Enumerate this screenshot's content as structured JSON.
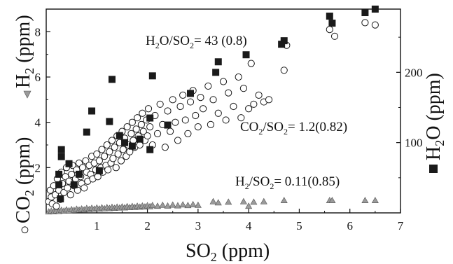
{
  "chart_data": {
    "type": "scatter",
    "x_axis": {
      "label_main": "SO",
      "label_sub": "2",
      "label_unit": " (ppm)",
      "range": [
        0,
        7
      ],
      "ticks": [
        1,
        2,
        3,
        4,
        5,
        6,
        7
      ]
    },
    "y_left_axis": {
      "range": [
        0,
        9
      ],
      "ticks": [
        2,
        4,
        6,
        8
      ],
      "label_co2_main": "CO",
      "label_co2_sub": "2",
      "label_co2_unit": " (ppm)",
      "label_h2_main": "H",
      "label_h2_sub": "2",
      "label_h2_unit": " (ppm)"
    },
    "y_right_axis": {
      "range": [
        0,
        290
      ],
      "ticks": [
        100,
        200
      ],
      "label_main": "H",
      "label_sub": "2",
      "label_unit": "O (ppm)"
    },
    "annotations": {
      "h2o_left": "H",
      "h2o_sub1": "2",
      "h2o_mid": "O/SO",
      "h2o_sub2": "2",
      "h2o_right": "= 43 (0.8)",
      "co2_left": "CO",
      "co2_sub1": "2",
      "co2_mid": "/SO",
      "co2_sub2": "2",
      "co2_right": "= 1.2(0.82)",
      "h2_left": "H",
      "h2_sub1": "2",
      "h2_mid": "/SO",
      "h2_sub2": "2",
      "h2_right": "= 0.11(0.85)"
    },
    "series": [
      {
        "name": "H2O",
        "marker": "filled-square",
        "axis": "right",
        "color": "#1a1a1a",
        "points": [
          [
            0.25,
            40
          ],
          [
            0.25,
            55
          ],
          [
            0.28,
            20
          ],
          [
            0.3,
            90
          ],
          [
            0.3,
            80
          ],
          [
            0.45,
            70
          ],
          [
            0.55,
            40
          ],
          [
            0.65,
            55
          ],
          [
            0.8,
            115
          ],
          [
            0.9,
            145
          ],
          [
            1.05,
            60
          ],
          [
            1.25,
            130
          ],
          [
            1.3,
            190
          ],
          [
            1.45,
            110
          ],
          [
            1.55,
            100
          ],
          [
            1.7,
            95
          ],
          [
            1.85,
            105
          ],
          [
            2.05,
            90
          ],
          [
            2.05,
            135
          ],
          [
            2.1,
            195
          ],
          [
            2.4,
            125
          ],
          [
            2.85,
            170
          ],
          [
            3.35,
            200
          ],
          [
            3.4,
            215
          ],
          [
            3.95,
            225
          ],
          [
            4.65,
            240
          ],
          [
            4.7,
            245
          ],
          [
            5.6,
            280
          ],
          [
            5.65,
            270
          ],
          [
            6.3,
            285
          ],
          [
            6.5,
            290
          ]
        ]
      },
      {
        "name": "CO2",
        "marker": "open-circle",
        "axis": "left",
        "color": "#1a1a1a",
        "points": [
          [
            0.05,
            0.5
          ],
          [
            0.08,
            1.0
          ],
          [
            0.1,
            0.7
          ],
          [
            0.12,
            0.4
          ],
          [
            0.15,
            1.2
          ],
          [
            0.18,
            0.8
          ],
          [
            0.2,
            0.3
          ],
          [
            0.22,
            1.5
          ],
          [
            0.25,
            1.0
          ],
          [
            0.28,
            0.6
          ],
          [
            0.3,
            1.8
          ],
          [
            0.32,
            1.3
          ],
          [
            0.35,
            0.9
          ],
          [
            0.38,
            1.6
          ],
          [
            0.4,
            2.0
          ],
          [
            0.42,
            1.1
          ],
          [
            0.45,
            1.4
          ],
          [
            0.48,
            0.8
          ],
          [
            0.5,
            1.7
          ],
          [
            0.52,
            2.1
          ],
          [
            0.55,
            1.2
          ],
          [
            0.58,
            1.5
          ],
          [
            0.6,
            1.9
          ],
          [
            0.62,
            1.0
          ],
          [
            0.65,
            2.2
          ],
          [
            0.68,
            1.6
          ],
          [
            0.7,
            1.3
          ],
          [
            0.72,
            2.0
          ],
          [
            0.75,
            1.1
          ],
          [
            0.78,
            2.3
          ],
          [
            0.8,
            1.8
          ],
          [
            0.82,
            1.4
          ],
          [
            0.85,
            2.1
          ],
          [
            0.88,
            1.7
          ],
          [
            0.9,
            2.5
          ],
          [
            0.92,
            1.5
          ],
          [
            0.95,
            2.2
          ],
          [
            0.98,
            1.9
          ],
          [
            1.0,
            2.6
          ],
          [
            1.02,
            1.6
          ],
          [
            1.05,
            2.3
          ],
          [
            1.08,
            2.0
          ],
          [
            1.1,
            2.8
          ],
          [
            1.12,
            1.8
          ],
          [
            1.15,
            2.5
          ],
          [
            1.18,
            2.1
          ],
          [
            1.2,
            3.0
          ],
          [
            1.22,
            1.9
          ],
          [
            1.25,
            2.7
          ],
          [
            1.28,
            2.2
          ],
          [
            1.3,
            3.2
          ],
          [
            1.32,
            2.4
          ],
          [
            1.35,
            2.9
          ],
          [
            1.38,
            2.0
          ],
          [
            1.4,
            3.4
          ],
          [
            1.42,
            2.6
          ],
          [
            1.45,
            3.1
          ],
          [
            1.48,
            2.3
          ],
          [
            1.5,
            3.6
          ],
          [
            1.52,
            2.8
          ],
          [
            1.55,
            3.3
          ],
          [
            1.58,
            2.5
          ],
          [
            1.6,
            3.8
          ],
          [
            1.62,
            3.0
          ],
          [
            1.65,
            2.7
          ],
          [
            1.68,
            3.5
          ],
          [
            1.7,
            4.0
          ],
          [
            1.72,
            3.2
          ],
          [
            1.75,
            2.9
          ],
          [
            1.78,
            3.7
          ],
          [
            1.8,
            4.2
          ],
          [
            1.82,
            3.4
          ],
          [
            1.85,
            3.0
          ],
          [
            1.88,
            3.9
          ],
          [
            1.9,
            4.4
          ],
          [
            1.92,
            3.6
          ],
          [
            1.95,
            3.2
          ],
          [
            1.98,
            4.1
          ],
          [
            2.0,
            3.4
          ],
          [
            2.02,
            4.6
          ],
          [
            2.05,
            3.8
          ],
          [
            2.1,
            3.0
          ],
          [
            2.15,
            4.3
          ],
          [
            2.2,
            3.5
          ],
          [
            2.25,
            4.8
          ],
          [
            2.3,
            3.9
          ],
          [
            2.35,
            2.9
          ],
          [
            2.4,
            4.5
          ],
          [
            2.45,
            3.6
          ],
          [
            2.5,
            5.0
          ],
          [
            2.55,
            4.0
          ],
          [
            2.6,
            3.2
          ],
          [
            2.65,
            4.7
          ],
          [
            2.7,
            5.2
          ],
          [
            2.75,
            4.1
          ],
          [
            2.8,
            3.5
          ],
          [
            2.85,
            4.9
          ],
          [
            2.9,
            5.4
          ],
          [
            2.95,
            4.3
          ],
          [
            3.0,
            3.8
          ],
          [
            3.05,
            5.1
          ],
          [
            3.1,
            4.6
          ],
          [
            3.2,
            5.6
          ],
          [
            3.25,
            3.9
          ],
          [
            3.3,
            5.0
          ],
          [
            3.4,
            4.4
          ],
          [
            3.5,
            5.8
          ],
          [
            3.55,
            4.1
          ],
          [
            3.6,
            5.3
          ],
          [
            3.7,
            4.7
          ],
          [
            3.8,
            6.0
          ],
          [
            3.85,
            4.2
          ],
          [
            3.9,
            5.5
          ],
          [
            4.0,
            4.6
          ],
          [
            4.05,
            6.6
          ],
          [
            4.1,
            4.8
          ],
          [
            4.2,
            5.2
          ],
          [
            4.3,
            4.9
          ],
          [
            4.4,
            5.0
          ],
          [
            4.7,
            6.3
          ],
          [
            4.75,
            7.4
          ],
          [
            5.6,
            8.1
          ],
          [
            5.7,
            7.8
          ],
          [
            6.3,
            8.4
          ],
          [
            6.5,
            8.3
          ]
        ]
      },
      {
        "name": "H2",
        "marker": "gray-triangle",
        "axis": "left",
        "color": "#9a9a9a",
        "points": [
          [
            0.05,
            0.05
          ],
          [
            0.1,
            0.08
          ],
          [
            0.15,
            0.06
          ],
          [
            0.2,
            0.1
          ],
          [
            0.25,
            0.07
          ],
          [
            0.3,
            0.12
          ],
          [
            0.35,
            0.09
          ],
          [
            0.4,
            0.14
          ],
          [
            0.45,
            0.1
          ],
          [
            0.5,
            0.15
          ],
          [
            0.55,
            0.12
          ],
          [
            0.6,
            0.17
          ],
          [
            0.65,
            0.13
          ],
          [
            0.7,
            0.18
          ],
          [
            0.75,
            0.14
          ],
          [
            0.8,
            0.2
          ],
          [
            0.85,
            0.16
          ],
          [
            0.9,
            0.21
          ],
          [
            0.95,
            0.17
          ],
          [
            1.0,
            0.22
          ],
          [
            1.05,
            0.18
          ],
          [
            1.1,
            0.23
          ],
          [
            1.15,
            0.19
          ],
          [
            1.2,
            0.24
          ],
          [
            1.25,
            0.2
          ],
          [
            1.3,
            0.25
          ],
          [
            1.35,
            0.21
          ],
          [
            1.4,
            0.26
          ],
          [
            1.45,
            0.22
          ],
          [
            1.5,
            0.27
          ],
          [
            1.55,
            0.23
          ],
          [
            1.6,
            0.28
          ],
          [
            1.65,
            0.24
          ],
          [
            1.7,
            0.29
          ],
          [
            1.75,
            0.25
          ],
          [
            1.8,
            0.3
          ],
          [
            1.85,
            0.26
          ],
          [
            1.9,
            0.31
          ],
          [
            1.95,
            0.27
          ],
          [
            2.0,
            0.32
          ],
          [
            2.05,
            0.28
          ],
          [
            2.1,
            0.33
          ],
          [
            2.2,
            0.3
          ],
          [
            2.3,
            0.34
          ],
          [
            2.4,
            0.31
          ],
          [
            2.5,
            0.35
          ],
          [
            2.6,
            0.32
          ],
          [
            2.7,
            0.36
          ],
          [
            2.8,
            0.33
          ],
          [
            2.9,
            0.37
          ],
          [
            3.0,
            0.34
          ],
          [
            3.3,
            0.5
          ],
          [
            3.4,
            0.45
          ],
          [
            3.6,
            0.48
          ],
          [
            3.9,
            0.5
          ],
          [
            4.0,
            0.3
          ],
          [
            4.1,
            0.48
          ],
          [
            4.3,
            0.5
          ],
          [
            4.7,
            0.55
          ],
          [
            5.6,
            0.55
          ],
          [
            5.65,
            0.55
          ],
          [
            6.3,
            0.55
          ],
          [
            6.5,
            0.55
          ]
        ]
      }
    ]
  }
}
